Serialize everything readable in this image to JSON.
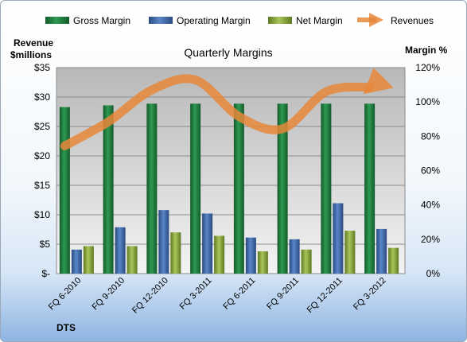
{
  "legend": {
    "gross": "Gross Margin",
    "operating": "Operating Margin",
    "net": "Net Margin",
    "revenues": "Revenues"
  },
  "left_axis_title_1": "Revenue",
  "left_axis_title_2": "$millions",
  "right_axis_title": "Margin %",
  "title": "Quarterly Margins",
  "footer_label": "DTS",
  "colors": {
    "gross": "#1f7a3c",
    "operating": "#3d65a8",
    "net": "#8aa83c",
    "revenues": "#e8873a"
  },
  "chart_data": {
    "type": "bar",
    "title": "Quarterly Margins",
    "categories": [
      "FQ 6-2010",
      "FQ 9-2010",
      "FQ 12-2010",
      "FQ 3-2011",
      "FQ 6-2011",
      "FQ 9-2011",
      "FQ 12-2011",
      "FQ 3-2012"
    ],
    "series": [
      {
        "name": "Gross Margin",
        "axis": "right",
        "values": [
          97,
          98,
          99,
          99,
          99,
          99,
          99,
          99
        ]
      },
      {
        "name": "Operating Margin",
        "axis": "right",
        "values": [
          14,
          27,
          37,
          35,
          21,
          20,
          41,
          26
        ]
      },
      {
        "name": "Net Margin",
        "axis": "right",
        "values": [
          16,
          16,
          24,
          22,
          13,
          14,
          25,
          15
        ]
      },
      {
        "name": "Revenues",
        "axis": "left",
        "type": "line",
        "values": [
          21.7,
          25.8,
          31.2,
          32.9,
          26.7,
          24.6,
          30.9,
          31.7
        ]
      }
    ],
    "y_left": {
      "label": "Revenue $millions",
      "range": [
        0,
        35
      ],
      "ticks": [
        "$-",
        "$5",
        "$10",
        "$15",
        "$20",
        "$25",
        "$30",
        "$35"
      ]
    },
    "y_right": {
      "label": "Margin %",
      "range": [
        0,
        120
      ],
      "ticks": [
        "0%",
        "20%",
        "40%",
        "60%",
        "80%",
        "100%",
        "120%"
      ]
    },
    "grid": true,
    "legend_position": "top"
  }
}
